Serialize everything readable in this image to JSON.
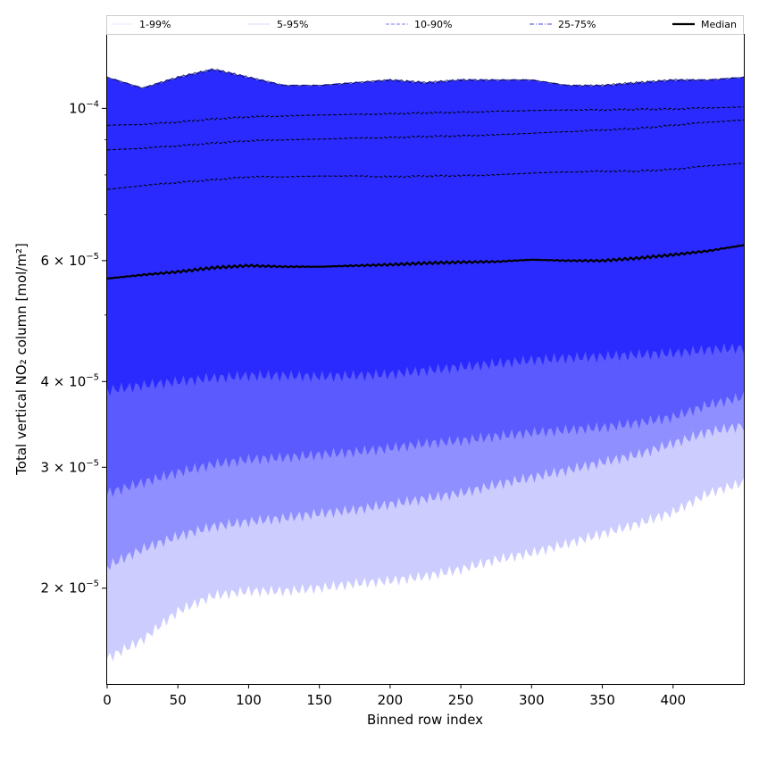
{
  "chart_data": {
    "type": "area",
    "xlabel": "Binned row index",
    "ylabel": "Total vertical NO₂ column [mol/m²]",
    "xlim": [
      0,
      450
    ],
    "ylim": [
      1.45e-05,
      0.000128
    ],
    "yscale": "log",
    "x_ticks": [
      0,
      50,
      100,
      150,
      200,
      250,
      300,
      350,
      400
    ],
    "y_ticks": [
      {
        "value": 2e-05,
        "mantissa": "2",
        "exp": "−5"
      },
      {
        "value": 3e-05,
        "mantissa": "3",
        "exp": "−5"
      },
      {
        "value": 4e-05,
        "mantissa": "4",
        "exp": "−5"
      },
      {
        "value": 6e-05,
        "mantissa": "6",
        "exp": "−5"
      },
      {
        "value": 0.0001,
        "mantissa": "",
        "exp": "−4"
      }
    ],
    "y_minor_ticks": [
      5e-05,
      7e-05,
      8e-05,
      9e-05
    ],
    "grid": false,
    "legend": {
      "placement": "top",
      "entries": [
        {
          "label": "1-99%",
          "color": "#e8e8ff",
          "style": "solid"
        },
        {
          "label": "5-95%",
          "color": "#a0a0ee",
          "style": "dotted"
        },
        {
          "label": "10-90%",
          "color": "#7878ff",
          "style": "dashed"
        },
        {
          "label": "25-75%",
          "color": "#4040e0",
          "style": "dashdot"
        },
        {
          "label": "Median",
          "color": "#000000",
          "style": "solid-thick"
        }
      ]
    },
    "x": [
      0,
      25,
      50,
      75,
      100,
      125,
      150,
      175,
      200,
      225,
      250,
      275,
      300,
      325,
      350,
      375,
      400,
      425,
      450
    ],
    "bands": [
      {
        "name": "1-99%",
        "color": "#ccccff",
        "lower": [
          1.58e-05,
          1.68e-05,
          1.85e-05,
          1.95e-05,
          1.98e-05,
          1.98e-05,
          2e-05,
          2.03e-05,
          2.05e-05,
          2.08e-05,
          2.13e-05,
          2.2e-05,
          2.25e-05,
          2.32e-05,
          2.4e-05,
          2.48e-05,
          2.58e-05,
          2.75e-05,
          2.85e-05
        ],
        "upper": [
          0.000111,
          0.000107,
          0.000111,
          0.000114,
          0.000111,
          0.000108,
          0.000108,
          0.000109,
          0.00011,
          0.000109,
          0.00011,
          0.00011,
          0.00011,
          0.000108,
          0.000108,
          0.000109,
          0.00011,
          0.00011,
          0.000111
        ]
      },
      {
        "name": "5-95%",
        "color": "#8f8fff",
        "lower": [
          2.15e-05,
          2.28e-05,
          2.38e-05,
          2.46e-05,
          2.5e-05,
          2.53e-05,
          2.57e-05,
          2.6e-05,
          2.65e-05,
          2.7e-05,
          2.75e-05,
          2.83e-05,
          2.9e-05,
          2.97e-05,
          3.05e-05,
          3.13e-05,
          3.25e-05,
          3.38e-05,
          3.45e-05
        ]
      },
      {
        "name": "10-90%",
        "color": "#5a5aff",
        "lower": [
          2.75e-05,
          2.85e-05,
          2.95e-05,
          3.03e-05,
          3.08e-05,
          3.1e-05,
          3.13e-05,
          3.16e-05,
          3.2e-05,
          3.25e-05,
          3.28e-05,
          3.33e-05,
          3.37e-05,
          3.4e-05,
          3.43e-05,
          3.48e-05,
          3.55e-05,
          3.7e-05,
          3.8e-05
        ]
      },
      {
        "name": "25-75%",
        "color": "#2a2aff",
        "lower": [
          3.88e-05,
          3.95e-05,
          4e-05,
          4.05e-05,
          4.08e-05,
          4.08e-05,
          4.07e-05,
          4.08e-05,
          4.1e-05,
          4.15e-05,
          4.2e-05,
          4.25e-05,
          4.3e-05,
          4.33e-05,
          4.35e-05,
          4.38e-05,
          4.4e-05,
          4.45e-05,
          4.48e-05
        ]
      }
    ],
    "quantile_lines": [
      {
        "name": "95%",
        "values": [
          9.45e-05,
          9.48e-05,
          9.55e-05,
          9.65e-05,
          9.72e-05,
          9.75e-05,
          9.78e-05,
          9.8e-05,
          9.82e-05,
          9.85e-05,
          9.87e-05,
          9.9e-05,
          9.93e-05,
          9.95e-05,
          9.95e-05,
          9.97e-05,
          9.98e-05,
          0.0001002,
          0.0001005
        ]
      },
      {
        "name": "90%",
        "values": [
          8.7e-05,
          8.75e-05,
          8.82e-05,
          8.9e-05,
          8.97e-05,
          9e-05,
          9.02e-05,
          9.05e-05,
          9.07e-05,
          9.1e-05,
          9.12e-05,
          9.15e-05,
          9.2e-05,
          9.25e-05,
          9.3e-05,
          9.35e-05,
          9.45e-05,
          9.55e-05,
          9.62e-05
        ]
      },
      {
        "name": "75%",
        "values": [
          7.62e-05,
          7.72e-05,
          7.8e-05,
          7.87e-05,
          7.95e-05,
          7.95e-05,
          7.97e-05,
          7.97e-05,
          7.95e-05,
          7.97e-05,
          7.98e-05,
          8e-05,
          8.05e-05,
          8.08e-05,
          8.1e-05,
          8.1e-05,
          8.15e-05,
          8.25e-05,
          8.32e-05
        ]
      }
    ],
    "median": [
      5.65e-05,
      5.72e-05,
      5.78e-05,
      5.86e-05,
      5.9e-05,
      5.88e-05,
      5.88e-05,
      5.9e-05,
      5.92e-05,
      5.95e-05,
      5.97e-05,
      5.98e-05,
      6.02e-05,
      6e-05,
      6e-05,
      6.05e-05,
      6.12e-05,
      6.2e-05,
      6.32e-05
    ]
  }
}
